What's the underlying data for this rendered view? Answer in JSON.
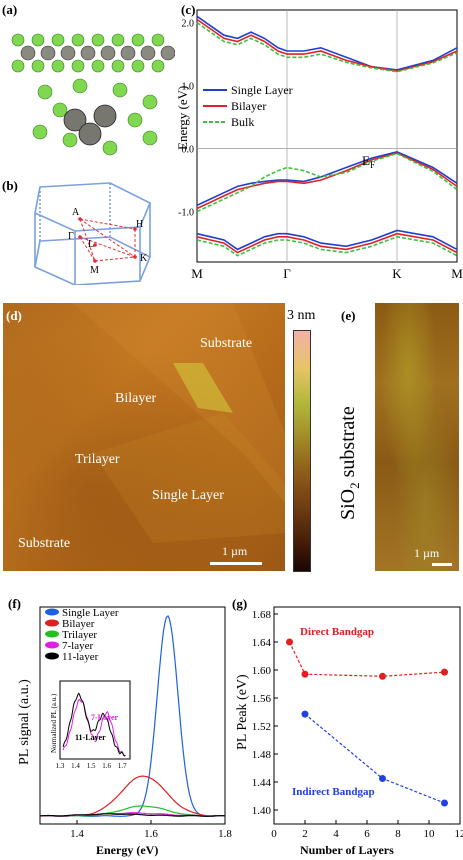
{
  "figure": {
    "panel_a": {
      "label": "(a)"
    },
    "panel_b": {
      "label": "(b)",
      "points": [
        "A",
        "Γ",
        "L",
        "H",
        "M",
        "K"
      ]
    },
    "panel_c": {
      "label": "(c)",
      "ef_label": "E",
      "ef_sub": "F"
    },
    "panel_d": {
      "label": "(d)",
      "regions": [
        "Substrate",
        "Bilayer",
        "Trilayer",
        "Single Layer",
        "Substrate"
      ],
      "scalebar": "1 µm"
    },
    "colorbar": {
      "max_label": "3 nm"
    },
    "panel_e": {
      "label": "(e)",
      "vertical_text": "SiO",
      "vertical_sub": "2",
      "vertical_rest": " substrate",
      "scalebar": "1 µm"
    },
    "panel_f": {
      "label": "(f)"
    },
    "panel_g": {
      "label": "(g)",
      "annot_direct": "Direct Bandgap",
      "annot_indirect": "Indirect Bandgap"
    }
  },
  "chart_data": [
    {
      "type": "line",
      "panel": "c",
      "ylabel": "Energy (eV)",
      "xticks": [
        "M",
        "Γ",
        "K",
        "M"
      ],
      "yticks": [
        "2.0",
        "1.0",
        "0.0",
        "-1.0"
      ],
      "ylim": [
        -1.8,
        2.2
      ],
      "legend": [
        "Single Layer",
        "Bilayer",
        "Bulk"
      ],
      "series": [
        {
          "name": "Single Layer",
          "color": "#1f3fd0",
          "style": "solid"
        },
        {
          "name": "Bilayer",
          "color": "#e0202a",
          "style": "solid"
        },
        {
          "name": "Bulk",
          "color": "#40c040",
          "style": "dashed"
        }
      ]
    },
    {
      "type": "line",
      "panel": "f",
      "xlabel": "Energy (eV)",
      "ylabel": "PL signal (a.u.)",
      "xlim": [
        1.3,
        1.8
      ],
      "xticks": [
        "1.4",
        "1.6",
        "1.8"
      ],
      "legend": [
        "Single Layer",
        "Bilayer",
        "Trilayer",
        "7-layer",
        "11-layer"
      ],
      "legend_colors": [
        "#1f5fe0",
        "#e02020",
        "#20c020",
        "#e020e0",
        "#000000"
      ],
      "inset": {
        "ylabel": "Normalized PL (a.u.)",
        "xticks": [
          "1.3",
          "1.4",
          "1.5",
          "1.6",
          "1.7"
        ],
        "labels": [
          "7-Layer",
          "11-Layer"
        ]
      }
    },
    {
      "type": "scatter",
      "panel": "g",
      "xlabel": "Number of Layers",
      "ylabel": "PL Peak (eV)",
      "xlim": [
        0,
        12
      ],
      "ylim": [
        1.38,
        1.69
      ],
      "xticks": [
        "0",
        "2",
        "4",
        "6",
        "8",
        "10",
        "12"
      ],
      "yticks": [
        "1.40",
        "1.44",
        "1.48",
        "1.52",
        "1.56",
        "1.60",
        "1.64",
        "1.68"
      ],
      "series": [
        {
          "name": "Direct Bandgap",
          "color": "#e02020",
          "x": [
            1,
            2,
            7,
            11
          ],
          "y": [
            1.64,
            1.594,
            1.591,
            1.597
          ]
        },
        {
          "name": "Indirect Bandgap",
          "color": "#2040e0",
          "x": [
            2,
            7,
            11
          ],
          "y": [
            1.537,
            1.445,
            1.41
          ]
        }
      ]
    }
  ]
}
